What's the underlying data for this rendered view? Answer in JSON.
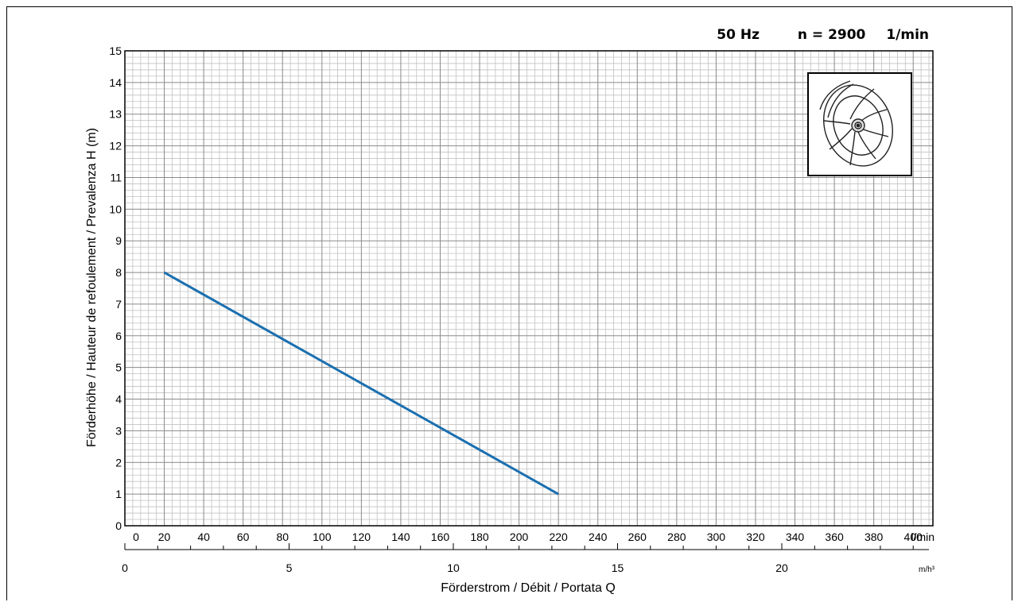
{
  "header": {
    "frequency": "50 Hz",
    "speed_label": "n = 2900",
    "speed_unit": "1/min"
  },
  "impeller_icon": "impeller-icon",
  "chart_data": {
    "type": "line",
    "ylabel": "Förderhöhe / Hauteur de refoulement / Prevalenza   H (m)",
    "xlabel": "Förderstrom / Débit / Portata   Q",
    "x_primary": {
      "unit": "l/min",
      "range": [
        0,
        410
      ],
      "ticks": [
        0,
        20,
        40,
        60,
        80,
        100,
        120,
        140,
        160,
        180,
        200,
        220,
        240,
        260,
        280,
        300,
        320,
        340,
        360,
        380,
        400
      ]
    },
    "x_secondary": {
      "unit": "m/h³",
      "ticks": [
        0,
        5,
        10,
        15,
        20
      ]
    },
    "y": {
      "range": [
        0,
        15
      ],
      "ticks": [
        0,
        1,
        2,
        3,
        4,
        5,
        6,
        7,
        8,
        9,
        10,
        11,
        12,
        13,
        14,
        15
      ]
    },
    "grid": true,
    "series": [
      {
        "color": "#1a6fb0",
        "points": [
          [
            20,
            8
          ],
          [
            220,
            1
          ]
        ]
      }
    ]
  }
}
